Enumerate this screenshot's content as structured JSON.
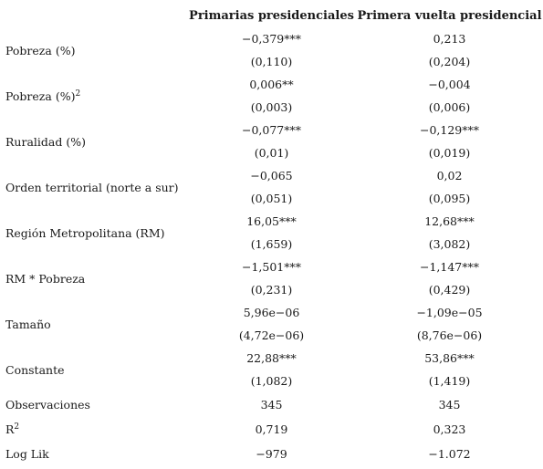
{
  "columns": [
    "Primarias presidenciales",
    "Primera vuelta presidencial"
  ],
  "rows": [
    {
      "label": "Pobreza (%)",
      "sup": "",
      "coef": [
        "−0,379***",
        "0,213"
      ],
      "se": [
        "(0,110)",
        "(0,204)"
      ]
    },
    {
      "label": "Pobreza (%)",
      "sup": "2",
      "coef": [
        "0,006**",
        "−0,004"
      ],
      "se": [
        "(0,003)",
        "(0,006)"
      ]
    },
    {
      "label": "Ruralidad (%)",
      "sup": "",
      "coef": [
        "−0,077***",
        "−0,129***"
      ],
      "se": [
        "(0,01)",
        "(0,019)"
      ]
    },
    {
      "label": "Orden territorial (norte a sur)",
      "sup": "",
      "coef": [
        "−0,065",
        "0,02"
      ],
      "se": [
        "(0,051)",
        "(0,095)"
      ]
    },
    {
      "label": "Región Metropolitana (RM)",
      "sup": "",
      "coef": [
        "16,05***",
        "12,68***"
      ],
      "se": [
        "(1,659)",
        "(3,082)"
      ]
    },
    {
      "label": "RM * Pobreza",
      "sup": "",
      "coef": [
        "−1,501***",
        "−1,147***"
      ],
      "se": [
        "(0,231)",
        "(0,429)"
      ]
    },
    {
      "label": "Tamaño",
      "sup": "",
      "coef": [
        "5,96e−06",
        "−1,09e−05"
      ],
      "se": [
        "(4,72e−06)",
        "(8,76e−06)"
      ]
    },
    {
      "label": "Constante",
      "sup": "",
      "coef": [
        "22,88***",
        "53,86***"
      ],
      "se": [
        "(1,082)",
        "(1,419)"
      ]
    }
  ],
  "stats": [
    {
      "label": "Observaciones",
      "sup": "",
      "values": [
        "345",
        "345"
      ]
    },
    {
      "label": "R",
      "sup": "2",
      "values": [
        "0,719",
        "0,323"
      ]
    },
    {
      "label": "Log Lik",
      "sup": "",
      "values": [
        "−979",
        "−1.072"
      ]
    }
  ]
}
